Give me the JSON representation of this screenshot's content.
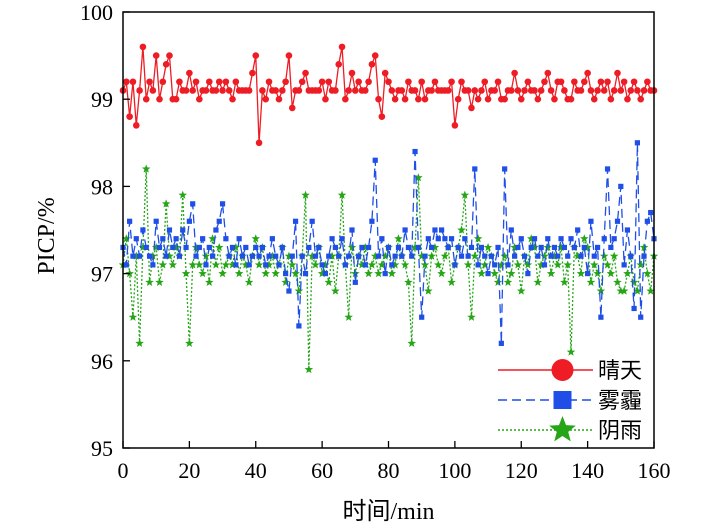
{
  "chart_data": {
    "type": "line",
    "title": "",
    "xlabel": "时间/min",
    "ylabel": "PICP/%",
    "xlim": [
      0,
      160
    ],
    "ylim": [
      95,
      100
    ],
    "xticks": [
      0,
      20,
      40,
      60,
      80,
      100,
      120,
      140,
      160
    ],
    "yticks": [
      95,
      96,
      97,
      98,
      99,
      100
    ],
    "grid": false,
    "legend_position": "bottom-right",
    "series": [
      {
        "name": "晴天",
        "color": "#ee1c24",
        "line_style": "solid",
        "marker": "circle",
        "x": [
          0,
          1,
          2,
          3,
          4,
          5,
          6,
          7,
          8,
          9,
          10,
          11,
          12,
          13,
          14,
          15,
          16,
          17,
          18,
          19,
          20,
          21,
          22,
          23,
          24,
          25,
          26,
          27,
          28,
          29,
          30,
          31,
          32,
          33,
          34,
          35,
          36,
          37,
          38,
          39,
          40,
          41,
          42,
          43,
          44,
          45,
          46,
          47,
          48,
          49,
          50,
          51,
          52,
          53,
          54,
          55,
          56,
          57,
          58,
          59,
          60,
          61,
          62,
          63,
          64,
          65,
          66,
          67,
          68,
          69,
          70,
          71,
          72,
          73,
          74,
          75,
          76,
          77,
          78,
          79,
          80,
          81,
          82,
          83,
          84,
          85,
          86,
          87,
          88,
          89,
          90,
          91,
          92,
          93,
          94,
          95,
          96,
          97,
          98,
          99,
          100,
          101,
          102,
          103,
          104,
          105,
          106,
          107,
          108,
          109,
          110,
          111,
          112,
          113,
          114,
          115,
          116,
          117,
          118,
          119,
          120,
          121,
          122,
          123,
          124,
          125,
          126,
          127,
          128,
          129,
          130,
          131,
          132,
          133,
          134,
          135,
          136,
          137,
          138,
          139,
          140,
          141,
          142,
          143,
          144,
          145,
          146,
          147,
          148,
          149,
          150,
          151,
          152,
          153,
          154,
          155,
          156,
          157,
          158,
          159,
          160
        ],
        "y": [
          99.1,
          99.2,
          98.8,
          99.2,
          98.7,
          99.1,
          99.6,
          99.0,
          99.2,
          99.1,
          99.5,
          99.0,
          99.2,
          99.4,
          99.5,
          99.0,
          99.0,
          99.2,
          99.1,
          99.1,
          99.3,
          99.1,
          99.2,
          99.0,
          99.1,
          99.1,
          99.2,
          99.1,
          99.1,
          99.2,
          99.1,
          99.2,
          99.1,
          99.0,
          99.2,
          99.1,
          99.1,
          99.1,
          99.1,
          99.3,
          99.5,
          98.5,
          99.1,
          99.0,
          99.2,
          99.1,
          99.1,
          99.0,
          99.1,
          99.2,
          99.5,
          98.9,
          99.1,
          99.1,
          99.2,
          99.3,
          99.1,
          99.1,
          99.1,
          99.1,
          99.2,
          99.0,
          99.2,
          99.1,
          99.1,
          99.4,
          99.6,
          99.0,
          99.1,
          99.3,
          99.1,
          99.2,
          99.1,
          99.1,
          99.2,
          99.4,
          99.5,
          99.0,
          98.8,
          99.3,
          99.2,
          99.1,
          99.0,
          99.1,
          99.1,
          99.0,
          99.2,
          99.1,
          99.1,
          99.0,
          99.2,
          99.0,
          99.1,
          99.1,
          99.2,
          99.1,
          99.1,
          99.1,
          99.1,
          99.2,
          98.7,
          99.0,
          99.2,
          99.1,
          99.1,
          98.9,
          99.1,
          99.0,
          99.1,
          99.2,
          99.0,
          99.1,
          99.1,
          99.2,
          99.0,
          99.0,
          99.1,
          99.1,
          99.3,
          99.1,
          99.0,
          99.1,
          99.2,
          99.1,
          99.1,
          99.0,
          99.1,
          99.2,
          99.3,
          99.1,
          99.0,
          99.2,
          99.2,
          99.1,
          99.0,
          99.0,
          99.2,
          99.1,
          99.1,
          99.2,
          99.3,
          99.1,
          99.0,
          99.1,
          99.2,
          99.1,
          99.2,
          99.0,
          99.1,
          99.3,
          99.1,
          99.2,
          99.0,
          99.1,
          99.2,
          99.1,
          99.0,
          99.1,
          99.2,
          99.1,
          99.1
        ]
      },
      {
        "name": "雾霾",
        "color": "#1f4fe6",
        "line_style": "dashed",
        "marker": "square",
        "x": [
          0,
          1,
          2,
          3,
          4,
          5,
          6,
          7,
          8,
          9,
          10,
          11,
          12,
          13,
          14,
          15,
          16,
          17,
          18,
          19,
          20,
          21,
          22,
          23,
          24,
          25,
          26,
          27,
          28,
          29,
          30,
          31,
          32,
          33,
          34,
          35,
          36,
          37,
          38,
          39,
          40,
          41,
          42,
          43,
          44,
          45,
          46,
          47,
          48,
          49,
          50,
          51,
          52,
          53,
          54,
          55,
          56,
          57,
          58,
          59,
          60,
          61,
          62,
          63,
          64,
          65,
          66,
          67,
          68,
          69,
          70,
          71,
          72,
          73,
          74,
          75,
          76,
          77,
          78,
          79,
          80,
          81,
          82,
          83,
          84,
          85,
          86,
          87,
          88,
          89,
          90,
          91,
          92,
          93,
          94,
          95,
          96,
          97,
          98,
          99,
          100,
          101,
          102,
          103,
          104,
          105,
          106,
          107,
          108,
          109,
          110,
          111,
          112,
          113,
          114,
          115,
          116,
          117,
          118,
          119,
          120,
          121,
          122,
          123,
          124,
          125,
          126,
          127,
          128,
          129,
          130,
          131,
          132,
          133,
          134,
          135,
          136,
          137,
          138,
          139,
          140,
          141,
          142,
          143,
          144,
          145,
          146,
          147,
          148,
          149,
          150,
          151,
          152,
          153,
          154,
          155,
          156,
          157,
          158,
          159,
          160
        ],
        "y": [
          97.3,
          97.1,
          97.6,
          97.2,
          97.4,
          97.2,
          97.5,
          97.3,
          97.2,
          97.1,
          97.6,
          97.3,
          97.4,
          97.2,
          97.5,
          97.3,
          97.4,
          97.2,
          97.5,
          97.3,
          97.6,
          97.8,
          97.2,
          97.3,
          97.4,
          97.1,
          97.3,
          97.2,
          97.5,
          97.6,
          97.8,
          97.4,
          97.2,
          97.3,
          97.1,
          97.4,
          97.2,
          97.3,
          97.1,
          97.2,
          97.3,
          97.2,
          97.3,
          97.1,
          97.2,
          97.4,
          97.2,
          97.1,
          97.3,
          97.0,
          96.8,
          97.2,
          97.6,
          96.4,
          97.2,
          97.0,
          97.3,
          97.6,
          97.2,
          97.3,
          97.1,
          97.0,
          97.2,
          97.4,
          97.3,
          97.2,
          97.4,
          97.1,
          97.2,
          97.5,
          96.9,
          97.2,
          97.3,
          97.1,
          97.3,
          97.6,
          98.3,
          97.2,
          97.4,
          97.0,
          97.3,
          97.1,
          97.2,
          97.3,
          97.2,
          97.5,
          97.3,
          97.2,
          98.4,
          97.3,
          96.5,
          97.2,
          97.4,
          97.3,
          97.5,
          97.4,
          97.5,
          97.4,
          97.3,
          97.4,
          97.1,
          97.3,
          97.2,
          97.4,
          97.2,
          97.3,
          98.2,
          97.1,
          97.3,
          97.2,
          97.0,
          97.2,
          97.1,
          97.3,
          96.2,
          98.2,
          97.1,
          97.5,
          97.2,
          97.3,
          97.4,
          97.2,
          97.0,
          97.3,
          97.4,
          97.2,
          97.3,
          97.1,
          97.4,
          97.2,
          97.3,
          97.2,
          97.4,
          97.3,
          97.2,
          97.4,
          97.3,
          97.5,
          97.2,
          97.3,
          97.0,
          97.6,
          97.2,
          97.3,
          96.5,
          97.4,
          98.2,
          97.3,
          97.4,
          97.6,
          98.0,
          97.1,
          97.5,
          97.2,
          96.6,
          98.5,
          96.5,
          97.2,
          97.6,
          97.7,
          97.4
        ]
      },
      {
        "name": "阴雨",
        "color": "#26a617",
        "line_style": "dotted",
        "marker": "star",
        "x": [
          0,
          1,
          2,
          3,
          4,
          5,
          6,
          7,
          8,
          9,
          10,
          11,
          12,
          13,
          14,
          15,
          16,
          17,
          18,
          19,
          20,
          21,
          22,
          23,
          24,
          25,
          26,
          27,
          28,
          29,
          30,
          31,
          32,
          33,
          34,
          35,
          36,
          37,
          38,
          39,
          40,
          41,
          42,
          43,
          44,
          45,
          46,
          47,
          48,
          49,
          50,
          51,
          52,
          53,
          54,
          55,
          56,
          57,
          58,
          59,
          60,
          61,
          62,
          63,
          64,
          65,
          66,
          67,
          68,
          69,
          70,
          71,
          72,
          73,
          74,
          75,
          76,
          77,
          78,
          79,
          80,
          81,
          82,
          83,
          84,
          85,
          86,
          87,
          88,
          89,
          90,
          91,
          92,
          93,
          94,
          95,
          96,
          97,
          98,
          99,
          100,
          101,
          102,
          103,
          104,
          105,
          106,
          107,
          108,
          109,
          110,
          111,
          112,
          113,
          114,
          115,
          116,
          117,
          118,
          119,
          120,
          121,
          122,
          123,
          124,
          125,
          126,
          127,
          128,
          129,
          130,
          131,
          132,
          133,
          134,
          135,
          136,
          137,
          138,
          139,
          140,
          141,
          142,
          143,
          144,
          145,
          146,
          147,
          148,
          149,
          150,
          151,
          152,
          153,
          154,
          155,
          156,
          157,
          158,
          159,
          160
        ],
        "y": [
          97.1,
          97.4,
          97.0,
          96.5,
          97.2,
          96.2,
          97.3,
          98.2,
          96.9,
          97.2,
          97.3,
          96.9,
          97.1,
          97.8,
          97.2,
          97.1,
          97.3,
          97.2,
          97.9,
          97.0,
          96.2,
          97.1,
          97.3,
          97.1,
          97.0,
          97.2,
          96.9,
          97.4,
          97.1,
          97.3,
          97.0,
          97.1,
          97.2,
          97.1,
          97.3,
          97.0,
          97.2,
          97.1,
          96.9,
          97.2,
          97.4,
          97.1,
          97.3,
          97.0,
          97.1,
          97.2,
          97.0,
          97.1,
          97.3,
          96.9,
          97.2,
          97.1,
          97.0,
          96.8,
          97.2,
          97.9,
          95.9,
          97.2,
          97.1,
          97.3,
          97.0,
          97.1,
          96.9,
          97.2,
          96.8,
          97.2,
          97.9,
          97.1,
          96.5,
          97.3,
          97.0,
          97.2,
          97.1,
          97.3,
          97.0,
          97.1,
          97.2,
          97.0,
          97.1,
          97.2,
          97.3,
          97.0,
          97.1,
          97.4,
          97.2,
          97.1,
          96.9,
          96.2,
          97.3,
          98.1,
          97.2,
          97.1,
          96.8,
          97.2,
          97.3,
          97.1,
          97.0,
          97.2,
          97.3,
          96.9,
          97.1,
          97.3,
          97.5,
          97.9,
          97.1,
          96.5,
          97.2,
          97.4,
          97.0,
          97.1,
          97.3,
          97.2,
          97.0,
          96.9,
          97.1,
          97.2,
          96.9,
          97.0,
          97.3,
          97.1,
          96.8,
          97.2,
          97.1,
          97.4,
          97.3,
          96.9,
          97.1,
          97.2,
          97.3,
          97.0,
          97.2,
          97.1,
          97.3,
          96.9,
          97.1,
          96.1,
          97.3,
          97.2,
          97.0,
          97.4,
          97.3,
          96.9,
          97.1,
          97.0,
          96.8,
          97.2,
          97.1,
          97.0,
          97.2,
          96.9,
          96.8,
          96.8,
          97.0,
          97.2,
          96.9,
          96.8,
          97.1,
          97.3,
          97.0,
          96.8,
          97.2
        ]
      }
    ]
  }
}
